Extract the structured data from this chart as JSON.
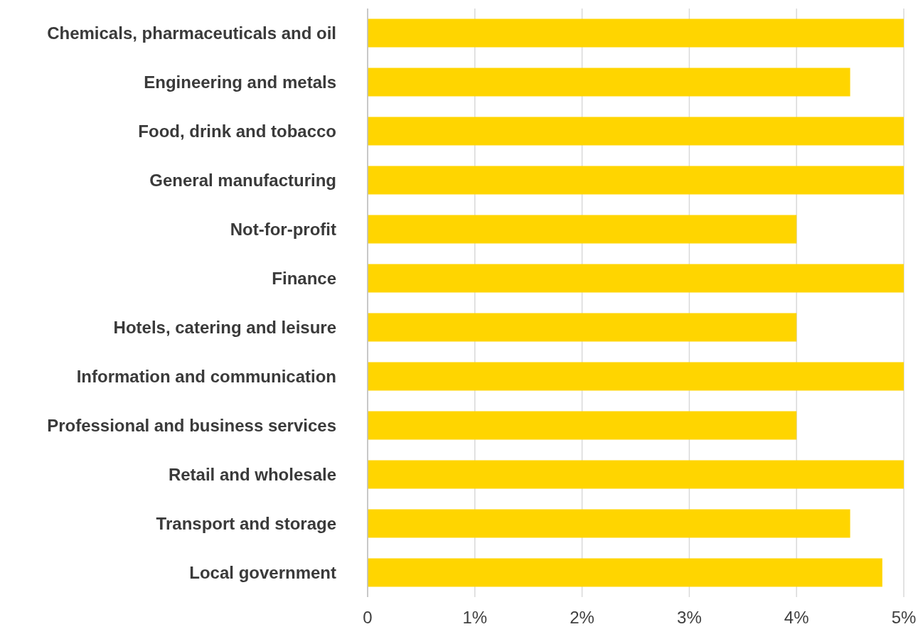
{
  "chart_data": {
    "type": "bar",
    "orientation": "horizontal",
    "categories": [
      "Chemicals, pharmaceuticals and oil",
      "Engineering and metals",
      "Food, drink and tobacco",
      "General manufacturing",
      "Not-for-profit",
      "Finance",
      "Hotels, catering and leisure",
      "Information and communication",
      "Professional and business services",
      "Retail and wholesale",
      "Transport and storage",
      "Local government"
    ],
    "values": [
      5,
      4.5,
      5,
      5,
      4,
      5,
      4,
      5,
      4,
      5,
      4.5,
      4.8
    ],
    "color": "#ffd500",
    "xlim": [
      0,
      5
    ],
    "xticks": [
      {
        "value": 0,
        "label": "0"
      },
      {
        "value": 1,
        "label": "1%"
      },
      {
        "value": 2,
        "label": "2%"
      },
      {
        "value": 3,
        "label": "3%"
      },
      {
        "value": 4,
        "label": "4%"
      },
      {
        "value": 5,
        "label": "5%"
      }
    ],
    "grid": "x"
  }
}
